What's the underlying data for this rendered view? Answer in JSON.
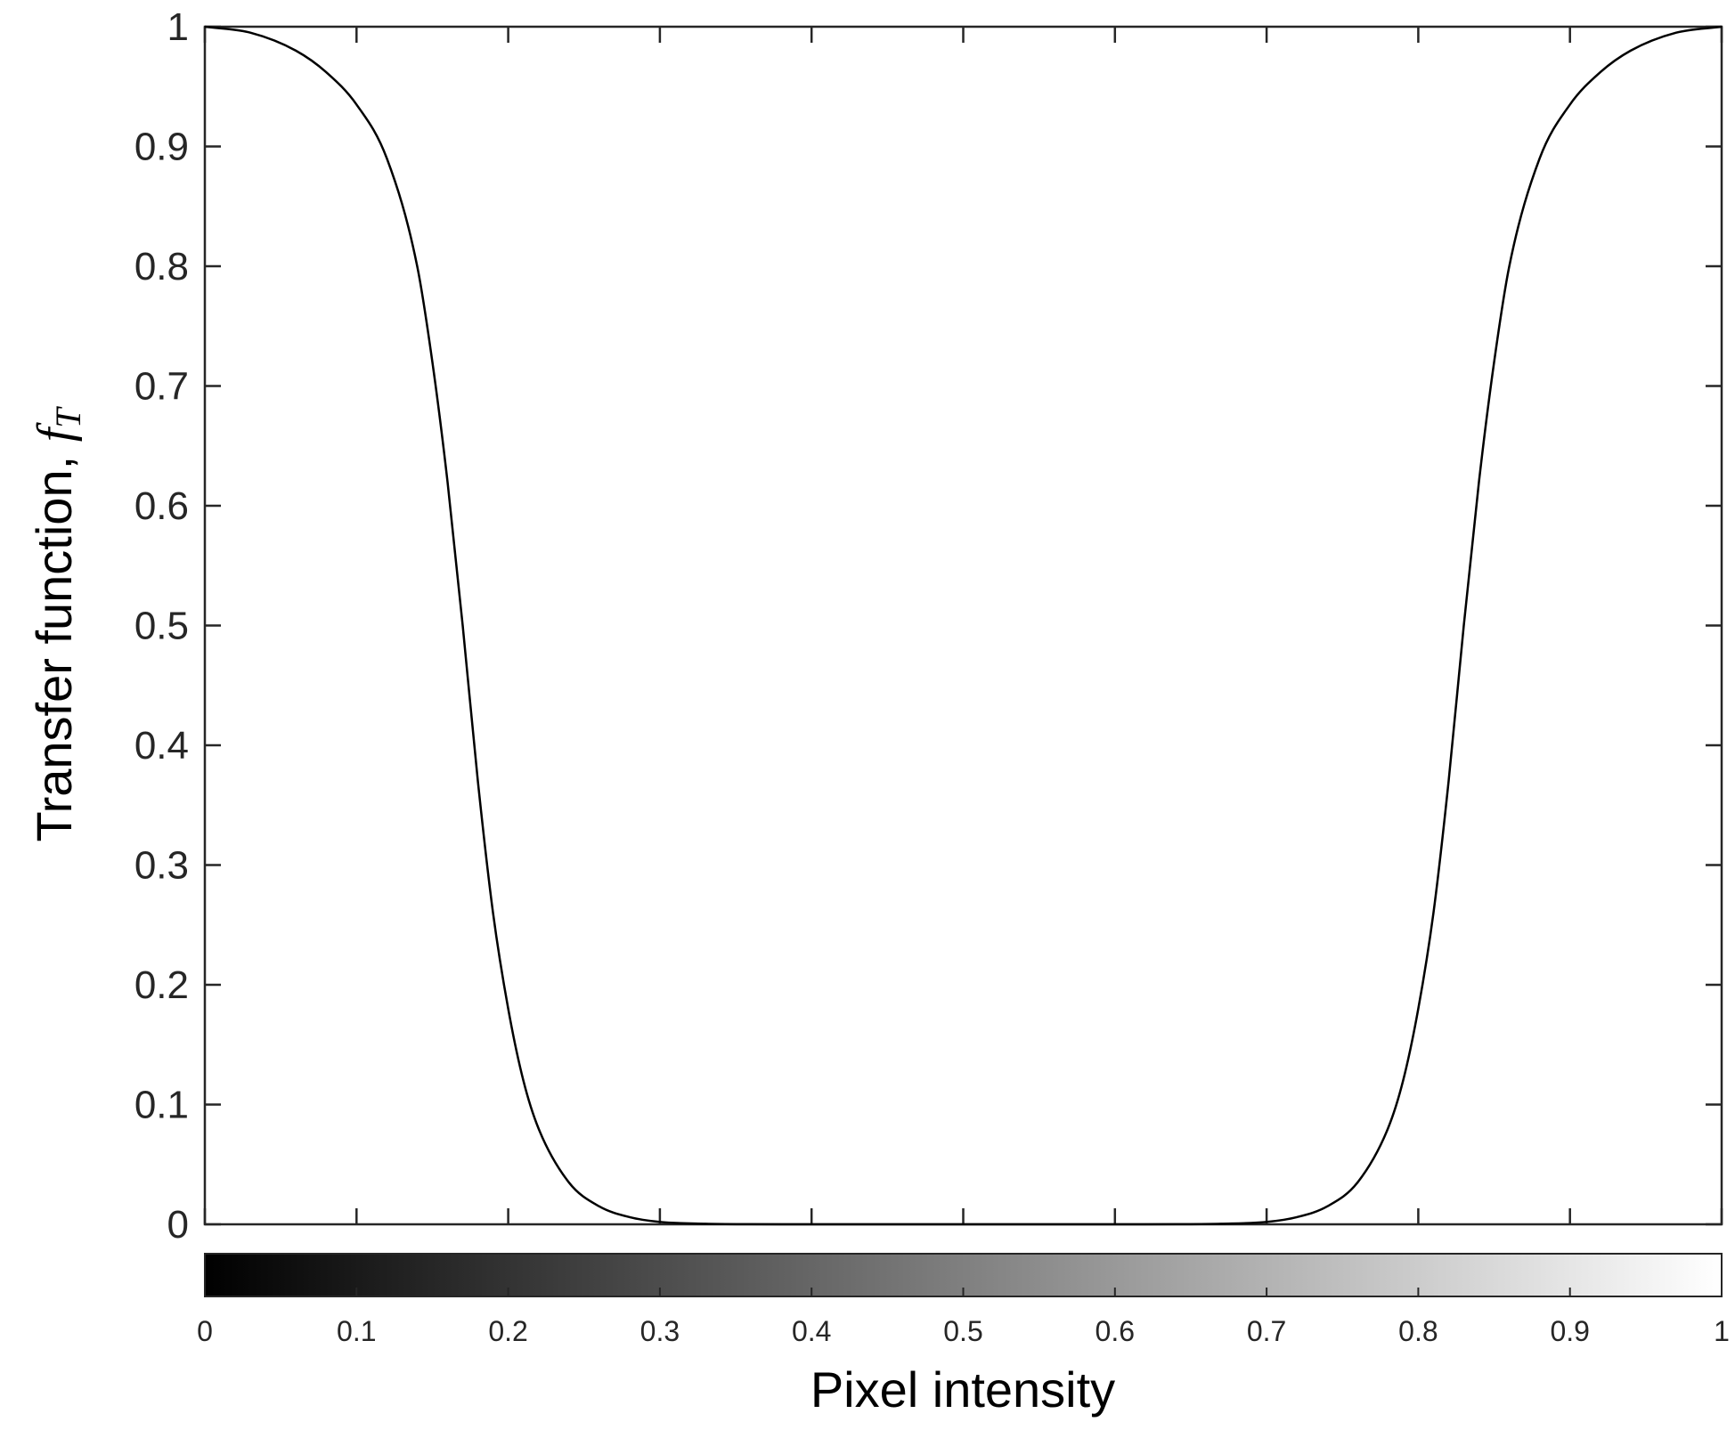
{
  "chart_data": {
    "type": "line",
    "xlabel": "Pixel intensity",
    "ylabel": {
      "text": "Transfer function, ",
      "symbol": "f",
      "subscript": "T"
    },
    "xlim": [
      0,
      1
    ],
    "ylim": [
      0,
      1
    ],
    "grid": false,
    "yticks": [
      "0",
      "0.1",
      "0.2",
      "0.3",
      "0.4",
      "0.5",
      "0.6",
      "0.7",
      "0.8",
      "0.9",
      "1"
    ],
    "xticks": [
      "0",
      "0.1",
      "0.2",
      "0.3",
      "0.4",
      "0.5",
      "0.6",
      "0.7",
      "0.8",
      "0.9",
      "1"
    ],
    "colorbar": {
      "orientation": "horizontal",
      "colormap": "gray",
      "range": [
        0,
        1
      ]
    },
    "series": [
      {
        "color": "#000000",
        "x": [
          0,
          0.03,
          0.06,
          0.08,
          0.1,
          0.12,
          0.14,
          0.15,
          0.16,
          0.17,
          0.18,
          0.19,
          0.2,
          0.21,
          0.22,
          0.24,
          0.26,
          0.28,
          0.3,
          0.33,
          0.36,
          0.4,
          0.5,
          0.6,
          0.64,
          0.67,
          0.7,
          0.72,
          0.74,
          0.76,
          0.78,
          0.79,
          0.8,
          0.81,
          0.82,
          0.83,
          0.84,
          0.85,
          0.86,
          0.88,
          0.9,
          0.92,
          0.94,
          0.97,
          1
        ],
        "y": [
          1,
          0.995,
          0.98,
          0.962,
          0.935,
          0.89,
          0.8,
          0.72,
          0.62,
          0.5,
          0.37,
          0.26,
          0.18,
          0.12,
          0.08,
          0.035,
          0.015,
          0.006,
          0.002,
          0.0005,
          0.0001,
          0,
          0,
          0,
          0.0001,
          0.0005,
          0.002,
          0.006,
          0.015,
          0.035,
          0.08,
          0.12,
          0.18,
          0.26,
          0.37,
          0.5,
          0.62,
          0.72,
          0.8,
          0.89,
          0.935,
          0.962,
          0.98,
          0.995,
          1
        ]
      }
    ]
  }
}
